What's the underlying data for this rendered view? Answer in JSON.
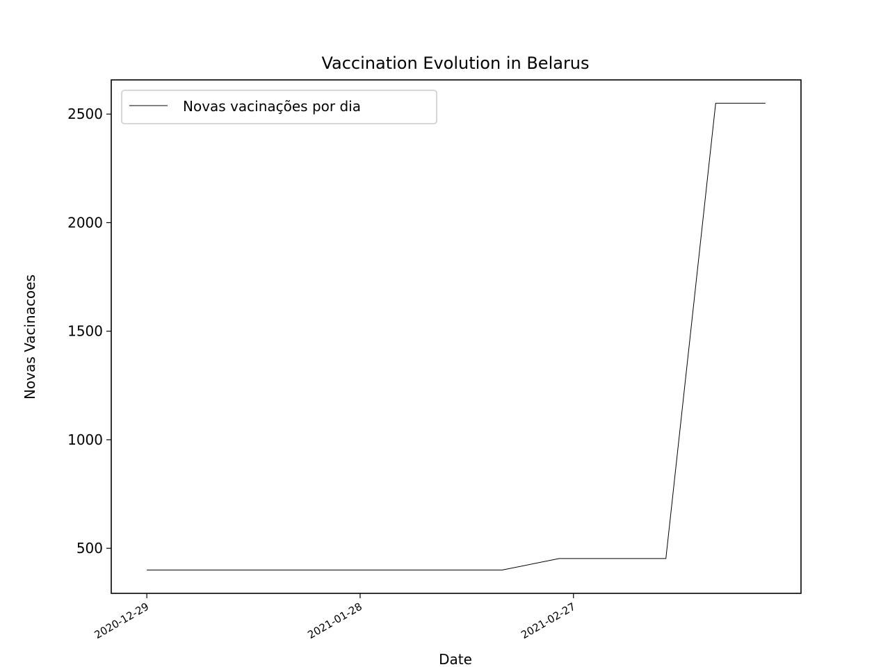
{
  "chart_data": {
    "type": "line",
    "title": "Vaccination Evolution in Belarus",
    "xlabel": "Date",
    "ylabel": "Novas Vacinacoes",
    "x": [
      "2020-12-29",
      "2021-02-17",
      "2021-02-25",
      "2021-03-12",
      "2021-03-19",
      "2021-03-26"
    ],
    "series": [
      {
        "name": "Novas vacinações por dia",
        "color": "#000000",
        "values": [
          400,
          400,
          453,
          453,
          2550,
          2550
        ]
      }
    ],
    "xlim": [
      "2020-12-24",
      "2021-03-31"
    ],
    "xticks": [
      "2020-12-29",
      "2021-01-28",
      "2021-02-27"
    ],
    "ylim": [
      292.5,
      2657.5
    ],
    "yticks": [
      500,
      1000,
      1500,
      2000,
      2500
    ],
    "legend": "upper left",
    "grid": false
  }
}
